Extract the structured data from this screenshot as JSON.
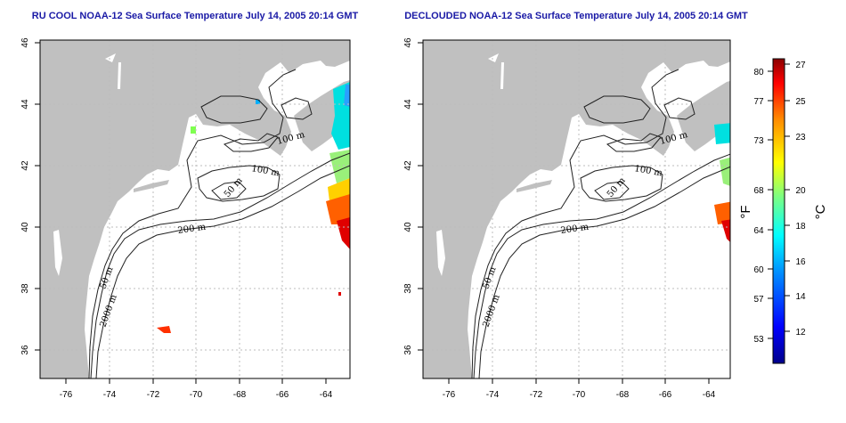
{
  "panels": [
    {
      "id": "left",
      "title": "RU COOL NOAA-12 Sea Surface Temperature July 14, 2005 20:14 GMT",
      "clouded": true
    },
    {
      "id": "right",
      "title": "DECLOUDED NOAA-12 Sea Surface Temperature July 14, 2005 20:14 GMT",
      "clouded": false
    }
  ],
  "axes": {
    "lon_ticks": [
      "-76",
      "-74",
      "-72",
      "-70",
      "-68",
      "-66",
      "-64"
    ],
    "lat_ticks": [
      "36",
      "38",
      "40",
      "42",
      "44",
      "46"
    ],
    "lon_range": [
      -77,
      -63
    ],
    "lat_range": [
      35,
      46
    ]
  },
  "contours": {
    "labels": [
      "100 m",
      "100 m",
      "50 m",
      "200 m",
      "50 m",
      "2000 m"
    ]
  },
  "colorbar": {
    "f_ticks": [
      "80",
      "77",
      "73",
      "68",
      "64",
      "60",
      "57",
      "53"
    ],
    "c_ticks": [
      "27",
      "25",
      "23",
      "20",
      "18",
      "16",
      "14",
      "12"
    ],
    "f_label": "°F",
    "c_label": "°C",
    "colors": [
      "#00008b",
      "#0000ff",
      "#0080ff",
      "#00ffff",
      "#80ff80",
      "#ffff00",
      "#ff8000",
      "#ff0000",
      "#8b0000"
    ]
  },
  "colors": {
    "land": "#c0c0c0",
    "grid": "#bdbdbd",
    "title": "#1a1aa6"
  }
}
